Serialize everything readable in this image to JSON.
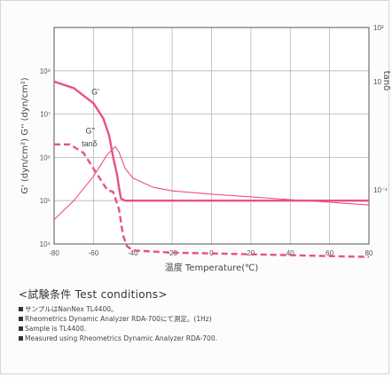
{
  "chart_data": {
    "type": "line",
    "x_label": "温度 Temperature(℃)",
    "y_label_left": "G' (dyn/cm²) G'' (dyn/cm²)",
    "y_label_right": "tanδ",
    "xlim": [
      -80,
      80
    ],
    "x_ticks": [
      -80,
      -60,
      -40,
      -20,
      0,
      20,
      40,
      60,
      80
    ],
    "y_left_log_exponent_range": [
      4,
      9
    ],
    "y_left_tick_labels": [
      "10⁸",
      "10⁷",
      "10⁶",
      "10⁵",
      "10⁴"
    ],
    "y_left_tick_exponents": [
      8,
      7,
      6,
      5,
      4
    ],
    "y_right_log_exponent_range": [
      -2,
      2
    ],
    "y_right_tick_labels": [
      "10²",
      "10",
      "10⁻¹"
    ],
    "y_right_tick_exponents": [
      2,
      1,
      -1
    ],
    "grid": true,
    "series": [
      {
        "name": "G'",
        "axis": "left",
        "line_style": "solid-thick",
        "points": [
          [
            -80,
            7.75
          ],
          [
            -70,
            7.6
          ],
          [
            -60,
            7.25
          ],
          [
            -55,
            6.9
          ],
          [
            -52,
            6.5
          ],
          [
            -50,
            6.0
          ],
          [
            -48,
            5.6
          ],
          [
            -47,
            5.3
          ],
          [
            -46,
            5.05
          ],
          [
            -44,
            5.0
          ],
          [
            -40,
            5.0
          ],
          [
            -20,
            5.0
          ],
          [
            0,
            5.0
          ],
          [
            20,
            5.0
          ],
          [
            40,
            5.0
          ],
          [
            60,
            5.0
          ],
          [
            80,
            5.0
          ]
        ]
      },
      {
        "name": "G''",
        "axis": "left",
        "line_style": "dashed",
        "points": [
          [
            -80,
            6.3
          ],
          [
            -72,
            6.3
          ],
          [
            -65,
            6.1
          ],
          [
            -58,
            5.6
          ],
          [
            -53,
            5.25
          ],
          [
            -50,
            5.2
          ],
          [
            -47,
            4.8
          ],
          [
            -45,
            4.2
          ],
          [
            -43,
            3.95
          ],
          [
            -40,
            3.85
          ],
          [
            -20,
            3.8
          ],
          [
            0,
            3.78
          ],
          [
            20,
            3.76
          ],
          [
            40,
            3.74
          ],
          [
            60,
            3.72
          ],
          [
            80,
            3.7
          ]
        ]
      },
      {
        "name": "tanδ",
        "axis": "right",
        "line_style": "solid-thin",
        "points": [
          [
            -80,
            -1.55
          ],
          [
            -70,
            -1.2
          ],
          [
            -60,
            -0.75
          ],
          [
            -53,
            -0.35
          ],
          [
            -49,
            -0.2
          ],
          [
            -47,
            -0.3
          ],
          [
            -44,
            -0.6
          ],
          [
            -40,
            -0.78
          ],
          [
            -30,
            -0.95
          ],
          [
            -20,
            -1.02
          ],
          [
            0,
            -1.08
          ],
          [
            20,
            -1.13
          ],
          [
            40,
            -1.18
          ],
          [
            60,
            -1.23
          ],
          [
            80,
            -1.28
          ]
        ]
      }
    ],
    "colors": {
      "curve": "#e8508c",
      "grid": "#b5b5b5",
      "axis": "#555555"
    }
  },
  "conditions": {
    "title": "<試験条件 Test conditions>",
    "lines": [
      "サンプルはNanNex TL4400。",
      "Rheometrics Dynamic Analyzer RDA-700にて測定。(1Hz)",
      "Sample is TL4400.",
      "Measured using Rheometrics Dynamic Analyzer RDA-700."
    ]
  }
}
